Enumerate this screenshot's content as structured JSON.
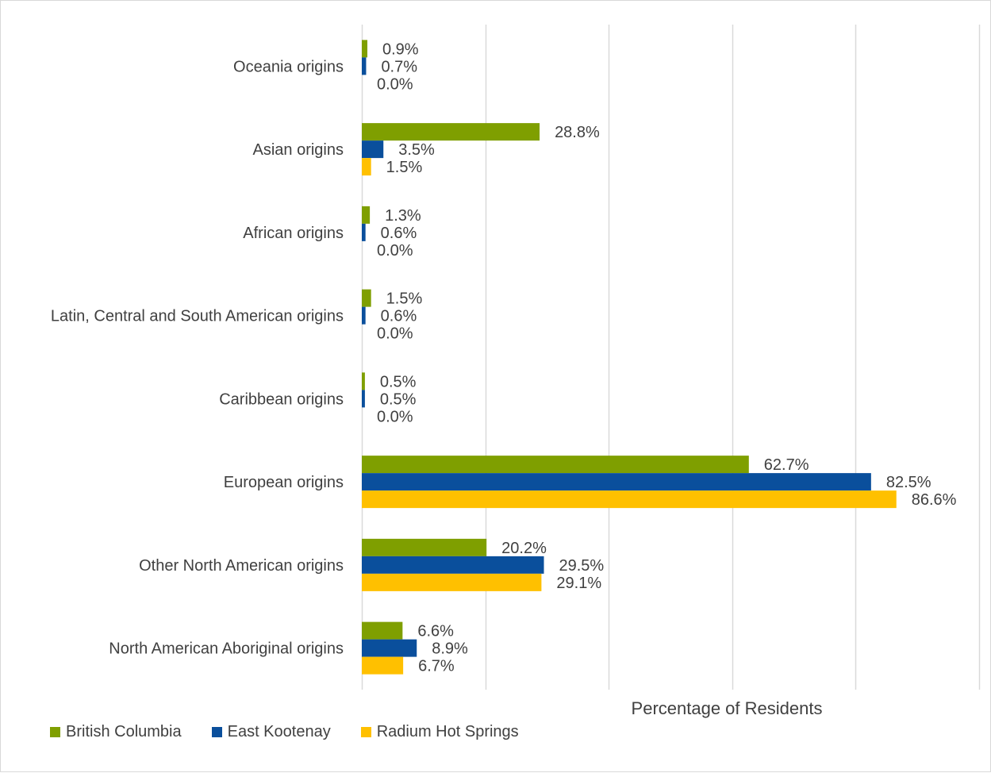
{
  "chart_data": {
    "type": "bar",
    "orientation": "horizontal",
    "title": "",
    "xlabel": "Percentage of Residents",
    "ylabel": "",
    "xlim": [
      0,
      100
    ],
    "grid": true,
    "legend_position": "bottom",
    "categories": [
      "Oceania origins",
      "Asian origins",
      "African origins",
      "Latin, Central and South American origins",
      "Caribbean origins",
      "European origins",
      "Other North American origins",
      "North American Aboriginal origins"
    ],
    "series": [
      {
        "name": "British Columbia",
        "color": "#7f9f00",
        "values": [
          0.9,
          28.8,
          1.3,
          1.5,
          0.5,
          62.7,
          20.2,
          6.6
        ],
        "labels": [
          "0.9%",
          "28.8%",
          "1.3%",
          "1.5%",
          "0.5%",
          "62.7%",
          "20.2%",
          "6.6%"
        ]
      },
      {
        "name": "East Kootenay",
        "color": "#0a4f9c",
        "values": [
          0.7,
          3.5,
          0.6,
          0.6,
          0.5,
          82.5,
          29.5,
          8.9
        ],
        "labels": [
          "0.7%",
          "3.5%",
          "0.6%",
          "0.6%",
          "0.5%",
          "82.5%",
          "29.5%",
          "8.9%"
        ]
      },
      {
        "name": "Radium Hot Springs",
        "color": "#ffc000",
        "values": [
          0.0,
          1.5,
          0.0,
          0.0,
          0.0,
          86.6,
          29.1,
          6.7
        ],
        "labels": [
          "0.0%",
          "1.5%",
          "0.0%",
          "0.0%",
          "0.0%",
          "86.6%",
          "29.1%",
          "6.7%"
        ]
      }
    ]
  }
}
